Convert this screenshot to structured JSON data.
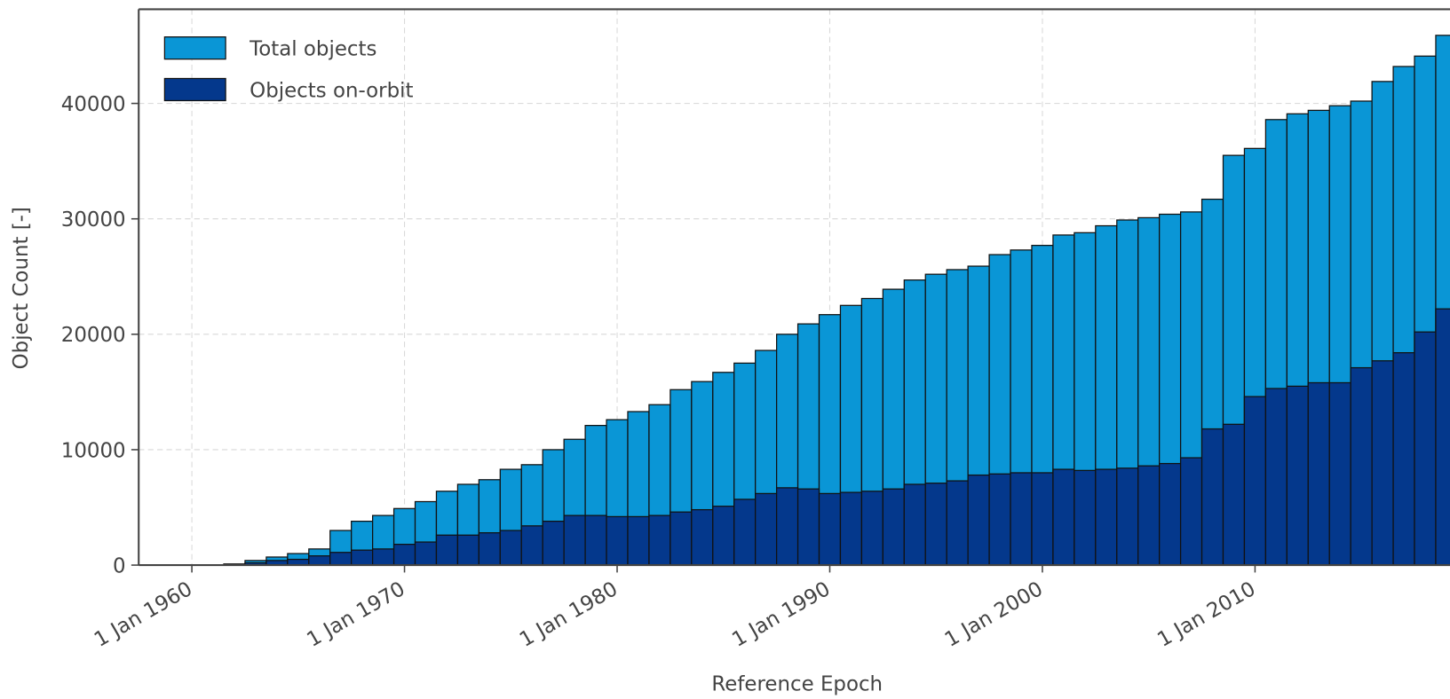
{
  "chart_data": {
    "type": "bar",
    "x_label": "Reference Epoch",
    "y_label": "Object Count [-]",
    "x": [
      1962,
      1963,
      1964,
      1965,
      1966,
      1967,
      1968,
      1969,
      1970,
      1971,
      1972,
      1973,
      1974,
      1975,
      1976,
      1977,
      1978,
      1979,
      1980,
      1981,
      1982,
      1983,
      1984,
      1985,
      1986,
      1987,
      1988,
      1989,
      1990,
      1991,
      1992,
      1993,
      1994,
      1995,
      1996,
      1997,
      1998,
      1999,
      2000,
      2001,
      2002,
      2003,
      2004,
      2005,
      2006,
      2007,
      2008,
      2009,
      2010,
      2011,
      2012,
      2013,
      2014,
      2015,
      2016,
      2017,
      2018,
      2019
    ],
    "series": [
      {
        "name": "Total objects",
        "color": "#0a96d6",
        "values": [
          100,
          400,
          700,
          1000,
          1400,
          3000,
          3800,
          4300,
          4900,
          5500,
          6400,
          7000,
          7400,
          8300,
          8700,
          10000,
          10900,
          12100,
          12600,
          13300,
          13900,
          15200,
          15900,
          16700,
          17500,
          18600,
          20000,
          20900,
          21700,
          22500,
          23100,
          23900,
          24700,
          25200,
          25600,
          25900,
          26900,
          27300,
          27700,
          28600,
          28800,
          29400,
          29900,
          30100,
          30400,
          30600,
          31700,
          35500,
          36100,
          38600,
          39100,
          39400,
          39800,
          40200,
          41900,
          43200,
          44100,
          45900
        ]
      },
      {
        "name": "Objects on-orbit",
        "color": "#04388c",
        "values": [
          50,
          200,
          400,
          500,
          800,
          1100,
          1300,
          1400,
          1800,
          2000,
          2600,
          2600,
          2800,
          3000,
          3400,
          3800,
          4300,
          4300,
          4200,
          4200,
          4300,
          4600,
          4800,
          5100,
          5700,
          6200,
          6700,
          6600,
          6200,
          6300,
          6400,
          6600,
          7000,
          7100,
          7300,
          7800,
          7900,
          8000,
          8000,
          8300,
          8200,
          8300,
          8400,
          8600,
          8800,
          9300,
          11800,
          12200,
          14600,
          15300,
          15500,
          15800,
          15800,
          17100,
          17700,
          18400,
          20200,
          22200
        ]
      }
    ],
    "bar_width": 1,
    "xlim": [
      1957.5,
      2019.2
    ],
    "ylim": [
      0,
      48160
    ],
    "xticks": [
      {
        "value": 1960,
        "label": "1 Jan 1960"
      },
      {
        "value": 1970,
        "label": "1 Jan 1970"
      },
      {
        "value": 1980,
        "label": "1 Jan 1980"
      },
      {
        "value": 1990,
        "label": "1 Jan 1990"
      },
      {
        "value": 2000,
        "label": "1 Jan 2000"
      },
      {
        "value": 2010,
        "label": "1 Jan 2010"
      }
    ],
    "yticks": [
      0,
      10000,
      20000,
      30000,
      40000
    ],
    "grid": true,
    "legend": "upper-left"
  }
}
